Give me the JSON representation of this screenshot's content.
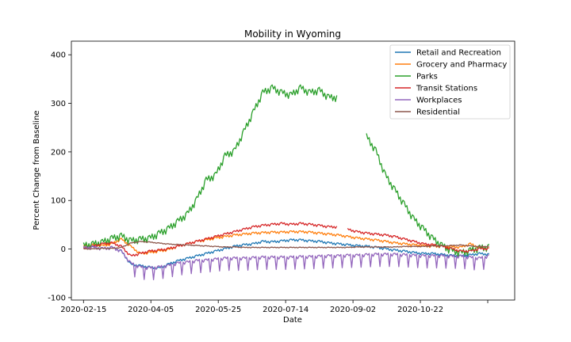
{
  "chart_data": {
    "type": "line",
    "title": "Mobility in Wyoming",
    "xlabel": "Date",
    "ylabel": "Percent Change from Baseline",
    "x_start": "2020-02-15",
    "x_end": "2020-12-22",
    "xlim": [
      "2020-02-06",
      "2020-12-31"
    ],
    "ylim": [
      -105,
      428
    ],
    "xticks": [
      "2020-02-15",
      "2020-04-05",
      "2020-05-25",
      "2020-07-14",
      "2020-09-02",
      "2020-10-22",
      ""
    ],
    "yticks": [
      -100,
      0,
      100,
      200,
      300,
      400
    ],
    "grid": false,
    "legend_position": "upper right",
    "series": [
      {
        "name": "Retail and Recreation",
        "color": "#1f77b4",
        "step_days": 7,
        "values": [
          2,
          3,
          0,
          3,
          -5,
          -32,
          -35,
          -38,
          -40,
          -32,
          -25,
          -20,
          -15,
          -10,
          -5,
          0,
          5,
          8,
          10,
          15,
          14,
          16,
          18,
          18,
          16,
          15,
          12,
          10,
          8,
          6,
          5,
          3,
          0,
          -3,
          -5,
          -8,
          -10,
          -10,
          -12,
          -14,
          -15,
          -13,
          -10,
          -12
        ]
      },
      {
        "name": "Grocery and Pharmacy",
        "color": "#ff7f0e",
        "step_days": 7,
        "values": [
          5,
          8,
          6,
          10,
          20,
          5,
          -10,
          -8,
          -5,
          -2,
          5,
          10,
          15,
          18,
          22,
          25,
          28,
          30,
          32,
          33,
          34,
          34,
          35,
          35,
          34,
          32,
          30,
          28,
          25,
          22,
          20,
          18,
          15,
          12,
          10,
          8,
          6,
          5,
          5,
          4,
          3,
          10,
          2,
          0
        ]
      },
      {
        "name": "Parks",
        "color": "#2ca02c",
        "step_days": 7,
        "values": [
          5,
          8,
          12,
          20,
          25,
          15,
          18,
          20,
          30,
          40,
          55,
          70,
          100,
          140,
          150,
          190,
          200,
          240,
          280,
          320,
          330,
          320,
          315,
          330,
          320,
          325,
          310,
          null,
          null,
          null,
          230,
          200,
          150,
          120,
          90,
          60,
          40,
          20,
          5,
          -5,
          -10,
          -5,
          0,
          2
        ]
      },
      {
        "name": "Transit Stations",
        "color": "#d62728",
        "step_days": 7,
        "values": [
          0,
          5,
          10,
          12,
          5,
          -15,
          -10,
          -5,
          -3,
          0,
          5,
          10,
          15,
          20,
          25,
          30,
          35,
          40,
          45,
          48,
          50,
          52,
          50,
          52,
          50,
          48,
          45,
          null,
          40,
          35,
          32,
          30,
          28,
          25,
          20,
          15,
          10,
          8,
          5,
          0,
          -5,
          -5,
          0,
          0
        ]
      },
      {
        "name": "Workplaces",
        "color": "#9467bd",
        "step_days": 7,
        "values": [
          2,
          3,
          0,
          2,
          -5,
          -30,
          -38,
          -40,
          -38,
          -35,
          -30,
          -28,
          -25,
          -24,
          -22,
          -20,
          -20,
          -20,
          -19,
          -18,
          -18,
          -18,
          -18,
          -17,
          -17,
          -16,
          -15,
          -15,
          -14,
          -14,
          -13,
          -12,
          -12,
          -12,
          -13,
          -14,
          -15,
          -15,
          -15,
          -16,
          -16,
          -18,
          -20,
          -15
        ]
      },
      {
        "name": "Residential",
        "color": "#8c564b",
        "step_days": 7,
        "values": [
          0,
          0,
          1,
          1,
          3,
          12,
          15,
          14,
          12,
          10,
          9,
          8,
          7,
          6,
          5,
          4,
          4,
          3,
          3,
          3,
          3,
          3,
          3,
          3,
          3,
          3,
          3,
          3,
          3,
          4,
          4,
          4,
          4,
          4,
          5,
          5,
          5,
          6,
          6,
          7,
          8,
          6,
          5,
          5
        ]
      }
    ]
  }
}
